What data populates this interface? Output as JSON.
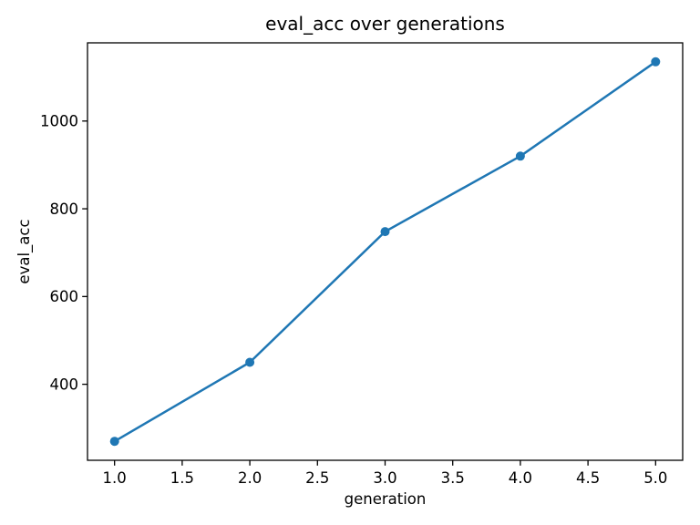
{
  "chart_data": {
    "type": "line",
    "title": "eval_acc over generations",
    "xlabel": "generation",
    "ylabel": "eval_acc",
    "x": [
      1,
      2,
      3,
      4,
      5
    ],
    "series": [
      {
        "name": "eval_acc",
        "values": [
          270,
          450,
          748,
          920,
          1135
        ]
      }
    ],
    "x_ticks": [
      1.0,
      1.5,
      2.0,
      2.5,
      3.0,
      3.5,
      4.0,
      4.5,
      5.0
    ],
    "x_tick_labels": [
      "1.0",
      "1.5",
      "2.0",
      "2.5",
      "3.0",
      "3.5",
      "4.0",
      "4.5",
      "5.0"
    ],
    "y_ticks": [
      400,
      600,
      800,
      1000
    ],
    "y_tick_labels": [
      "400",
      "600",
      "800",
      "1000"
    ],
    "xlim": [
      0.8,
      5.2
    ],
    "ylim": [
      226.75,
      1178.25
    ],
    "line_color": "#1f77b4",
    "marker": "o",
    "grid": false,
    "legend": null,
    "background_color": "#ffffff",
    "frame_color": "#000000"
  }
}
